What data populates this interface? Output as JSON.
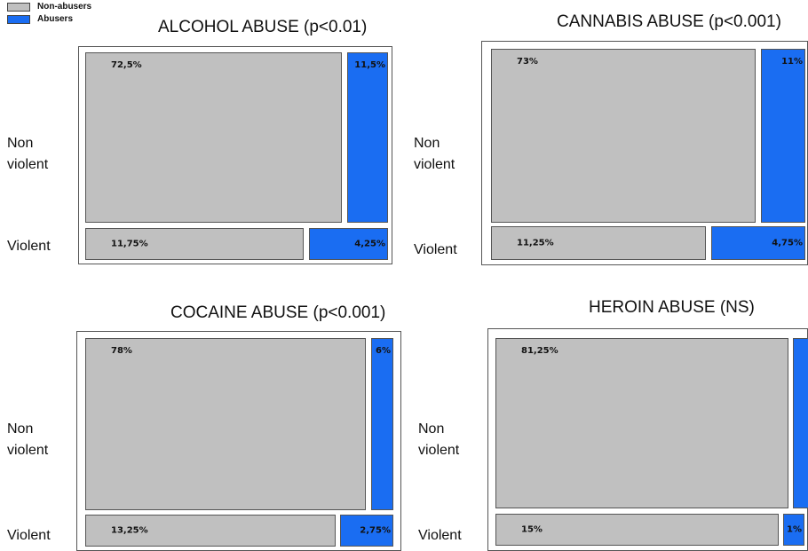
{
  "legend": [
    {
      "label": "Non-abusers",
      "color": "#c0c0c0"
    },
    {
      "label": "Abusers",
      "color": "#1a6df2"
    }
  ],
  "row_labels": {
    "non_violent": "Non\nviolent",
    "violent": "Violent"
  },
  "colors": {
    "non_abusers": "#c0c0c0",
    "abusers": "#1a6df2"
  },
  "chart_data": [
    {
      "type": "mosaic",
      "title": "ALCOHOL ABUSE (p<0.01)",
      "rows": [
        "Non violent",
        "Violent"
      ],
      "columns": [
        "Non-abusers",
        "Abusers"
      ],
      "values": [
        [
          72.5,
          11.5
        ],
        [
          11.75,
          4.25
        ]
      ],
      "labels": [
        [
          "72,5%",
          "11,5%"
        ],
        [
          "11,75%",
          "4,25%"
        ]
      ]
    },
    {
      "type": "mosaic",
      "title": "CANNABIS ABUSE (p<0.001)",
      "rows": [
        "Non violent",
        "Violent"
      ],
      "columns": [
        "Non-abusers",
        "Abusers"
      ],
      "values": [
        [
          73,
          11
        ],
        [
          11.25,
          4.75
        ]
      ],
      "labels": [
        [
          "73%",
          "11%"
        ],
        [
          "11,25%",
          "4,75%"
        ]
      ]
    },
    {
      "type": "mosaic",
      "title": "COCAINE ABUSE (p<0.001)",
      "rows": [
        "Non violent",
        "Violent"
      ],
      "columns": [
        "Non-abusers",
        "Abusers"
      ],
      "values": [
        [
          78,
          6
        ],
        [
          13.25,
          2.75
        ]
      ],
      "labels": [
        [
          "78%",
          "6%"
        ],
        [
          "13,25%",
          "2,75%"
        ]
      ]
    },
    {
      "type": "mosaic",
      "title": "HEROIN ABUSE (NS)",
      "rows": [
        "Non violent",
        "Violent"
      ],
      "columns": [
        "Non-abusers",
        "Abusers"
      ],
      "values": [
        [
          81.25,
          2.75
        ],
        [
          15,
          1
        ]
      ],
      "labels": [
        [
          "81,25%",
          ""
        ],
        [
          "15%",
          "1%"
        ]
      ]
    }
  ]
}
